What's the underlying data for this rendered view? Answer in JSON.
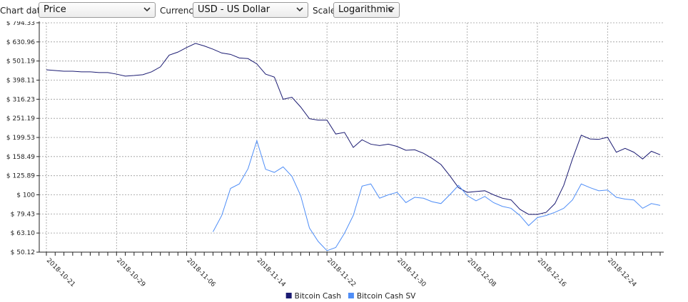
{
  "controls": [
    {
      "label": "Chart data",
      "value": "Price"
    },
    {
      "label": "Currency",
      "value": "USD - US Dollar"
    },
    {
      "label": "Scale",
      "value": "Logarithmic"
    }
  ],
  "chart_data": {
    "type": "line",
    "log_scale": true,
    "grid": true,
    "legend": "bottom",
    "x": [
      "2018-10-21",
      "2018-10-22",
      "2018-10-23",
      "2018-10-24",
      "2018-10-25",
      "2018-10-26",
      "2018-10-27",
      "2018-10-28",
      "2018-10-29",
      "2018-10-30",
      "2018-10-31",
      "2018-11-01",
      "2018-11-02",
      "2018-11-03",
      "2018-11-04",
      "2018-11-05",
      "2018-11-06",
      "2018-11-07",
      "2018-11-08",
      "2018-11-09",
      "2018-11-10",
      "2018-11-11",
      "2018-11-12",
      "2018-11-13",
      "2018-11-14",
      "2018-11-15",
      "2018-11-16",
      "2018-11-17",
      "2018-11-18",
      "2018-11-19",
      "2018-11-20",
      "2018-11-21",
      "2018-11-22",
      "2018-11-23",
      "2018-11-24",
      "2018-11-25",
      "2018-11-26",
      "2018-11-27",
      "2018-11-28",
      "2018-11-29",
      "2018-11-30",
      "2018-12-01",
      "2018-12-02",
      "2018-12-03",
      "2018-12-04",
      "2018-12-05",
      "2018-12-06",
      "2018-12-07",
      "2018-12-08",
      "2018-12-09",
      "2018-12-10",
      "2018-12-11",
      "2018-12-12",
      "2018-12-13",
      "2018-12-14",
      "2018-12-15",
      "2018-12-16",
      "2018-12-17",
      "2018-12-18",
      "2018-12-19",
      "2018-12-20",
      "2018-12-21",
      "2018-12-22",
      "2018-12-23",
      "2018-12-24",
      "2018-12-25",
      "2018-12-26",
      "2018-12-27",
      "2018-12-28",
      "2018-12-29",
      "2018-12-30"
    ],
    "series": [
      {
        "name": "Bitcoin Cash",
        "color": "#1b1b72",
        "values": [
          451,
          447,
          443,
          443,
          440,
          440,
          436,
          436,
          428,
          418,
          421,
          425,
          440,
          467,
          538,
          558,
          590,
          620,
          601,
          578,
          552,
          543,
          520,
          516,
          484,
          428,
          413,
          316,
          324,
          288,
          250,
          246,
          246,
          208,
          212,
          177,
          194,
          184,
          181,
          184,
          179,
          171,
          172,
          165,
          155,
          144,
          126,
          109,
          103,
          104,
          105,
          100,
          96,
          94,
          84,
          79,
          79,
          81,
          90,
          112,
          154,
          205,
          196,
          195,
          200,
          167,
          175,
          167,
          154,
          169,
          162
        ]
      },
      {
        "name": "Bitcoin Cash SV",
        "color": "#4f8ef7",
        "values": [
          null,
          null,
          null,
          null,
          null,
          null,
          null,
          null,
          null,
          null,
          null,
          null,
          null,
          null,
          null,
          null,
          null,
          null,
          null,
          64,
          78,
          108,
          114,
          137,
          192,
          136,
          131,
          140,
          125,
          99,
          67,
          57,
          51,
          53,
          63,
          78,
          111,
          114,
          96,
          100,
          103,
          91,
          97,
          96,
          92,
          90,
          100,
          112,
          99,
          93,
          98,
          91,
          87,
          85,
          78,
          69,
          76,
          78,
          81,
          85,
          94,
          114,
          109,
          105,
          106,
          97,
          95,
          94,
          85,
          90,
          88
        ]
      }
    ],
    "xlim": [
      "2018-10-21",
      "2018-12-30"
    ],
    "xticks": [
      "2018-10-21",
      "2018-10-29",
      "2018-11-06",
      "2018-11-14",
      "2018-11-22",
      "2018-11-30",
      "2018-12-08",
      "2018-12-16",
      "2018-12-24"
    ],
    "ylim": [
      50.12,
      794.33
    ],
    "yticks": [
      {
        "value": 50.12,
        "label": "$ 50.12"
      },
      {
        "value": 63.1,
        "label": "$ 63.10"
      },
      {
        "value": 79.43,
        "label": "$ 79.43"
      },
      {
        "value": 100,
        "label": "$ 100"
      },
      {
        "value": 125.89,
        "label": "$ 125.89"
      },
      {
        "value": 158.49,
        "label": "$ 158.49"
      },
      {
        "value": 199.53,
        "label": "$ 199.53"
      },
      {
        "value": 251.19,
        "label": "$ 251.19"
      },
      {
        "value": 316.23,
        "label": "$ 316.23"
      },
      {
        "value": 398.11,
        "label": "$ 398.11"
      },
      {
        "value": 501.19,
        "label": "$ 501.19"
      },
      {
        "value": 630.96,
        "label": "$ 630.96"
      },
      {
        "value": 794.33,
        "label": "$ 794.33"
      }
    ]
  }
}
